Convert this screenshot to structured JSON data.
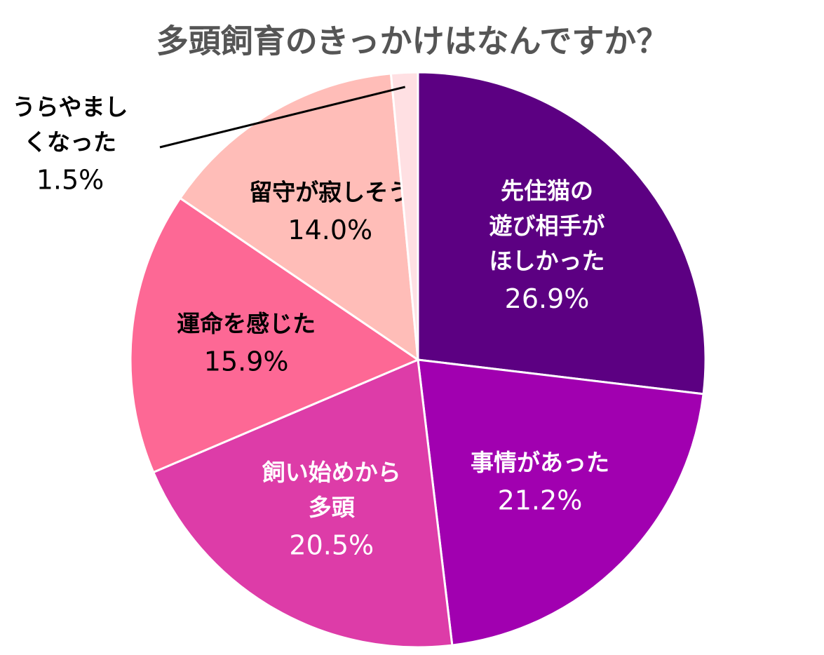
{
  "chart_data": {
    "type": "pie",
    "title": "多頭飼育のきっかけはなんですか？",
    "categories": [
      "先住猫の\n遊び相手が\nほしかった",
      "事情があった",
      "飼い始めから\n多頭",
      "運命を感じた",
      "留守が寂しそう",
      "うらやまし\nくなった"
    ],
    "values": [
      26.9,
      21.2,
      20.5,
      15.9,
      14.0,
      1.5
    ],
    "value_labels": [
      "26.9%",
      "21.2%",
      "20.5%",
      "15.9%",
      "14.0%",
      "1.5%"
    ],
    "colors": [
      "#5c0082",
      "#a100b0",
      "#dd3ca8",
      "#fd6895",
      "#ffbdb8",
      "#ffe0e3"
    ]
  }
}
